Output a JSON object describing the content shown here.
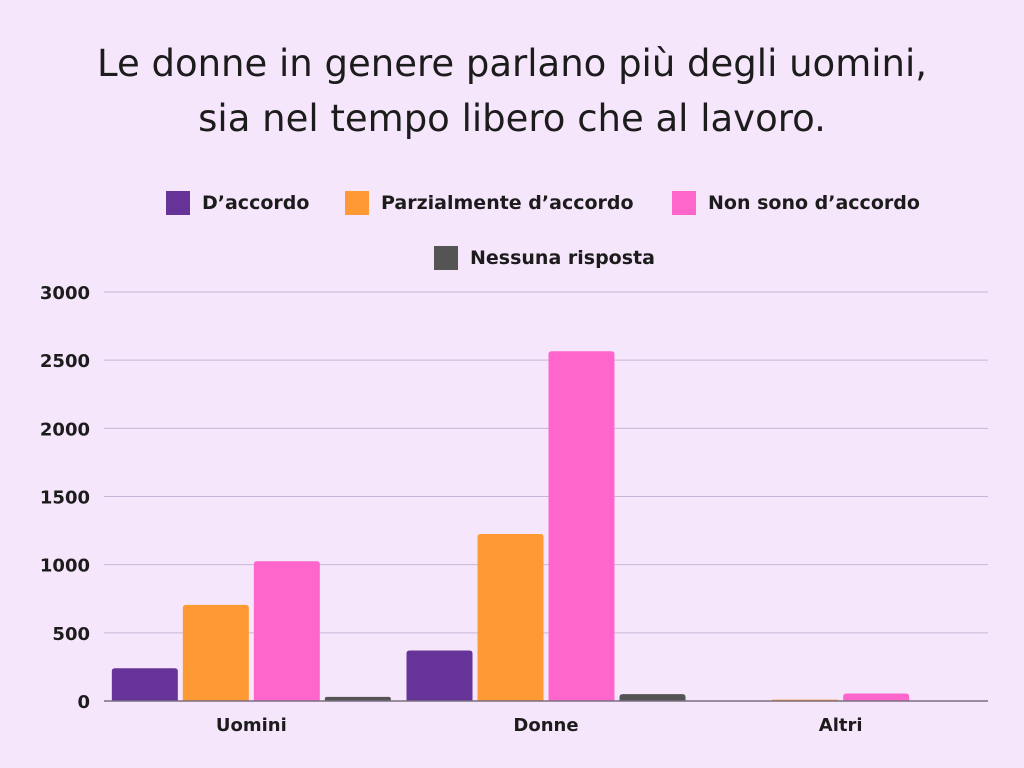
{
  "title_lines": [
    "Le donne in genere parlano più degli uomini,",
    "sia nel tempo libero che al lavoro."
  ],
  "colors": {
    "background": "#F6E6FB",
    "grid": "#C9B6D6",
    "axis": "#7a6e80"
  },
  "chart_data": {
    "type": "bar",
    "title": "Le donne in genere parlano più degli uomini, sia nel tempo libero che al lavoro.",
    "categories": [
      "Uomini",
      "Donne",
      "Altri"
    ],
    "series": [
      {
        "name": "D’accordo",
        "color": "#663399",
        "values": [
          240,
          370,
          0
        ]
      },
      {
        "name": "Parzialmente d’accordo",
        "color": "#FF9933",
        "values": [
          705,
          1225,
          10
        ]
      },
      {
        "name": "Non sono d’accordo",
        "color": "#FF66CC",
        "values": [
          1025,
          2565,
          55
        ]
      },
      {
        "name": "Nessuna risposta",
        "color": "#545454",
        "values": [
          30,
          50,
          0
        ]
      }
    ],
    "xlabel": "",
    "ylabel": "",
    "ylim": [
      0,
      3000
    ],
    "yticks": [
      0,
      500,
      1000,
      1500,
      2000,
      2500,
      3000
    ],
    "grid": true,
    "legend_position": "top"
  }
}
